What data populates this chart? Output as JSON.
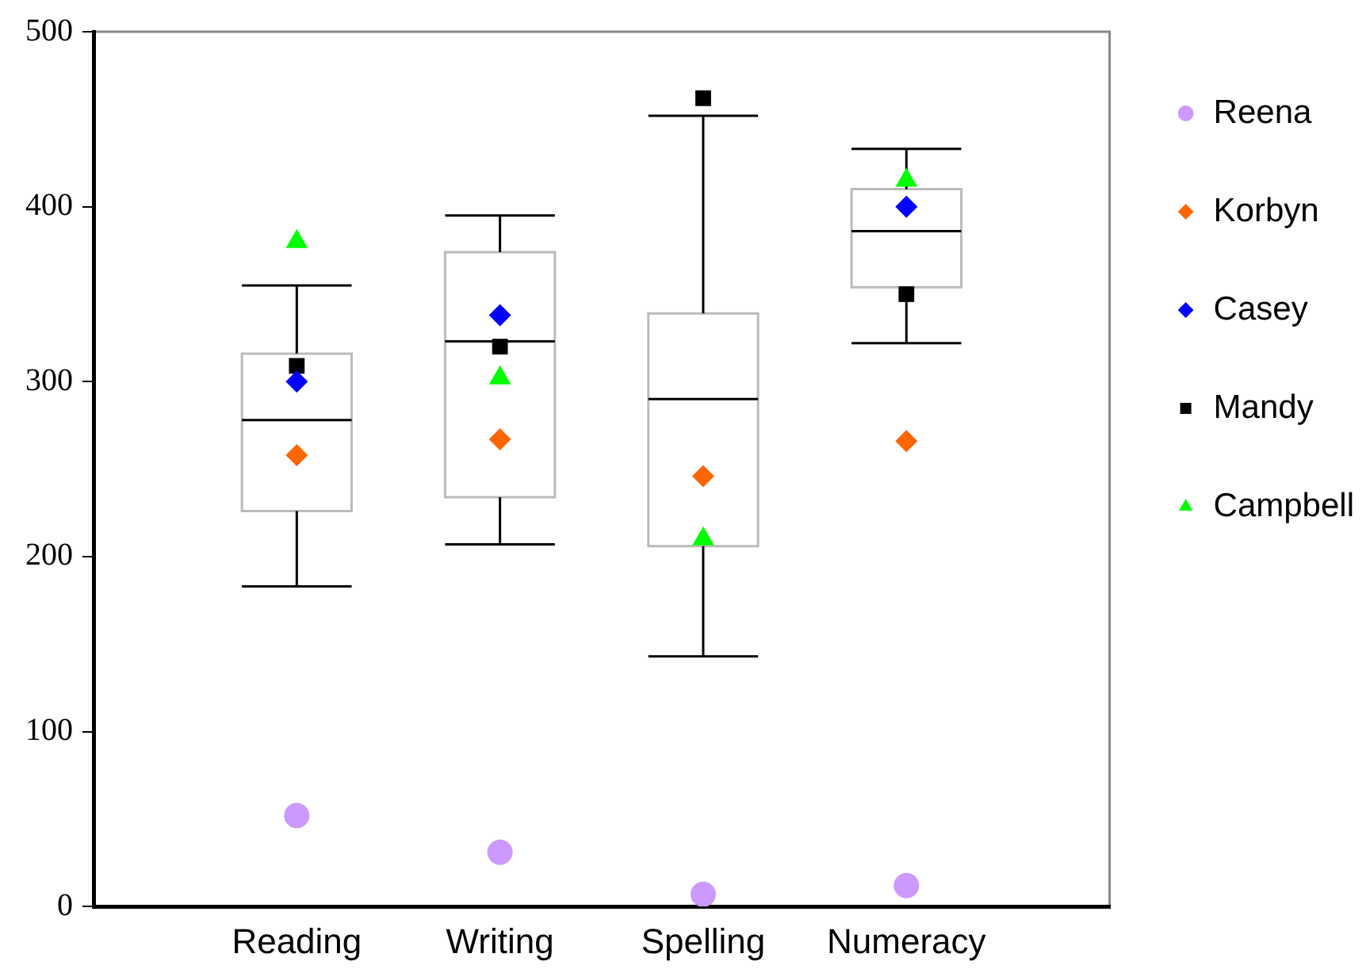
{
  "chart_data": {
    "type": "box",
    "categories": [
      "Reading",
      "Writing",
      "Spelling",
      "Numeracy"
    ],
    "ylim": [
      0,
      500
    ],
    "yticks": [
      0,
      100,
      200,
      300,
      400,
      500
    ],
    "grid": false,
    "legend": "right",
    "boxes": [
      {
        "low": 183,
        "q1": 226,
        "median": 278,
        "q3": 316,
        "high": 355
      },
      {
        "low": 207,
        "q1": 234,
        "median": 323,
        "q3": 374,
        "high": 395
      },
      {
        "low": 143,
        "q1": 206,
        "median": 290,
        "q3": 339,
        "high": 452
      },
      {
        "low": 322,
        "q1": 354,
        "median": 386,
        "q3": 410,
        "high": 433
      }
    ],
    "series": [
      {
        "type": "scatter",
        "name": "Reena",
        "color": "#cc99ff",
        "marker": "circle",
        "values": [
          52,
          31,
          7,
          12
        ]
      },
      {
        "type": "scatter",
        "name": "Korbyn",
        "color": "#ff6600",
        "marker": "diamond",
        "values": [
          258,
          267,
          246,
          266
        ]
      },
      {
        "type": "scatter",
        "name": "Casey",
        "color": "#0000ff",
        "marker": "diamond",
        "values": [
          300,
          338,
          null,
          400
        ]
      },
      {
        "type": "scatter",
        "name": "Mandy",
        "color": "#000000",
        "marker": "square",
        "values": [
          309,
          320,
          462,
          350
        ]
      },
      {
        "type": "scatter",
        "name": "Campbell",
        "color": "#00ff00",
        "marker": "triangle",
        "values": [
          380,
          302,
          210,
          415
        ]
      }
    ]
  }
}
